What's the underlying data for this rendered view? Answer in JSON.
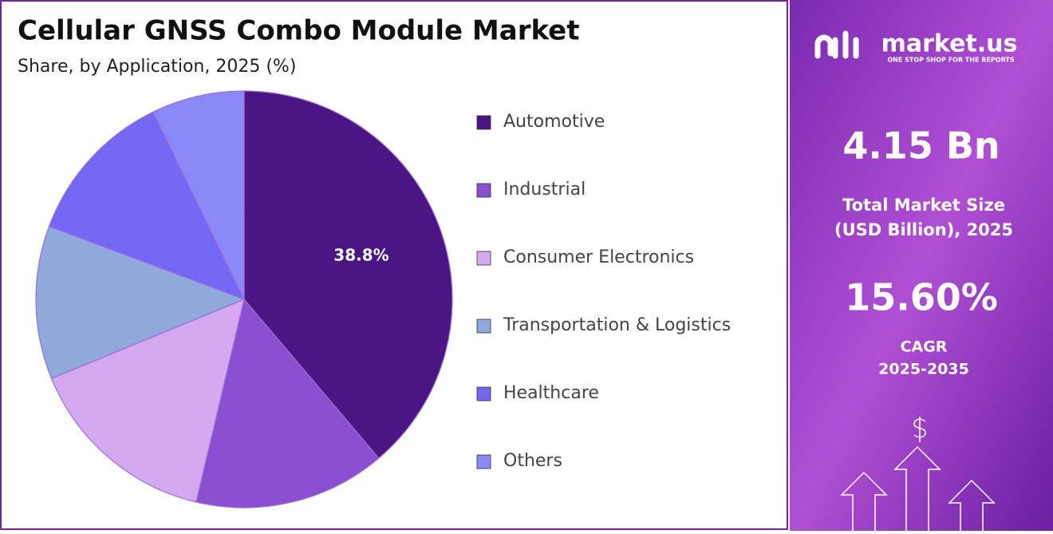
{
  "chart_data": {
    "type": "pie",
    "title": "Cellular GNSS Combo Module Market",
    "subtitle": "Share, by Application, 2025 (%)",
    "categories": [
      "Automotive",
      "Industrial",
      "Consumer Electronics",
      "Transportation & Logistics",
      "Healthcare",
      "Others"
    ],
    "values": [
      38.8,
      14.9,
      15.1,
      11.9,
      12.1,
      7.2
    ],
    "value_labels": [
      "38.8%",
      null,
      null,
      null,
      null,
      null
    ],
    "colors": [
      "#4b1583",
      "#8a4fd0",
      "#d5a9ef",
      "#8fa9dc",
      "#7467f6",
      "#8b88fa"
    ],
    "legend": "right"
  },
  "sidebar": {
    "brand": "market.us",
    "tagline": "ONE STOP SHOP FOR THE REPORTS",
    "market_size": "4.15 Bn",
    "market_size_label": [
      "Total Market Size",
      "(USD Billion), 2025"
    ],
    "cagr": "15.60%",
    "cagr_label": [
      "CAGR",
      "2025-2035"
    ]
  }
}
